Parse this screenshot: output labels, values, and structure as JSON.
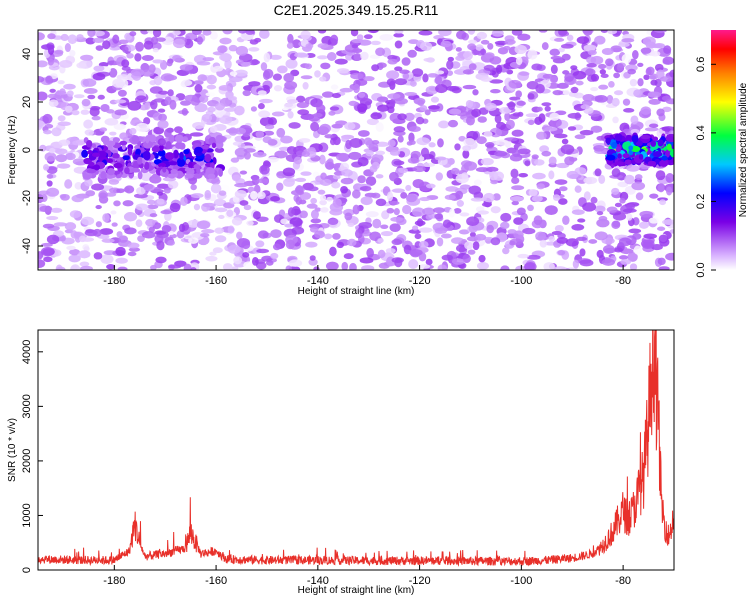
{
  "title": "C2E1.2025.349.15.25.R11",
  "chart_data": [
    {
      "type": "heatmap",
      "title": "C2E1.2025.349.15.25.R11",
      "xlabel": "Height of straight line (km)",
      "ylabel": "Frequency (Hz)",
      "xlim": [
        -195,
        -70
      ],
      "ylim": [
        -50,
        50
      ],
      "xticks": [
        -180,
        -160,
        -140,
        -120,
        -100,
        -80
      ],
      "yticks": [
        -40,
        -20,
        0,
        20,
        40
      ],
      "blobs": [
        {
          "x0": -186,
          "x1": -159,
          "fc": -3,
          "fs": 8,
          "amp": 0.28
        },
        {
          "x0": -83,
          "x1": -70,
          "fc": 0,
          "fs": 6,
          "amp": 0.5
        }
      ],
      "background_amp": 0.07,
      "colorbar": {
        "label": "Normalized spectral amplitude",
        "range": [
          0,
          0.7
        ],
        "ticks": [
          "0.0",
          "0.2",
          "0.4",
          "0.6"
        ],
        "colors": [
          "#ffffff",
          "#7a00e6",
          "#0000ff",
          "#00e5ff",
          "#00ff40",
          "#ffff00",
          "#ff8000",
          "#ff0000",
          "#ff0080"
        ]
      }
    },
    {
      "type": "line",
      "xlabel": "Height of straight line (km)",
      "ylabel": "SNR (10 * v/v)",
      "xlim": [
        -195,
        -70
      ],
      "ylim": [
        0,
        4400
      ],
      "xticks": [
        -180,
        -160,
        -140,
        -120,
        -100,
        -80
      ],
      "yticks": [
        0,
        1000,
        2000,
        3000,
        4000
      ],
      "color": "#e8302a",
      "baseline": 150,
      "x": [
        -195,
        -186,
        -180,
        -177,
        -176,
        -175,
        -174,
        -170,
        -166,
        -165,
        -163,
        -160,
        -158,
        -150,
        -140,
        -130,
        -120,
        -110,
        -100,
        -95,
        -90,
        -86,
        -84,
        -82,
        -80,
        -79,
        -78,
        -77,
        -76,
        -75.5,
        -75,
        -74.5,
        -74,
        -73.5,
        -73,
        -72.5,
        -72,
        -71,
        -70
      ],
      "y": [
        200,
        180,
        180,
        350,
        850,
        500,
        250,
        300,
        400,
        700,
        300,
        350,
        200,
        180,
        180,
        170,
        170,
        165,
        160,
        180,
        220,
        300,
        450,
        700,
        1100,
        900,
        1100,
        1400,
        1700,
        2200,
        2700,
        3600,
        4300,
        3400,
        2600,
        1300,
        900,
        600,
        1000
      ]
    }
  ]
}
